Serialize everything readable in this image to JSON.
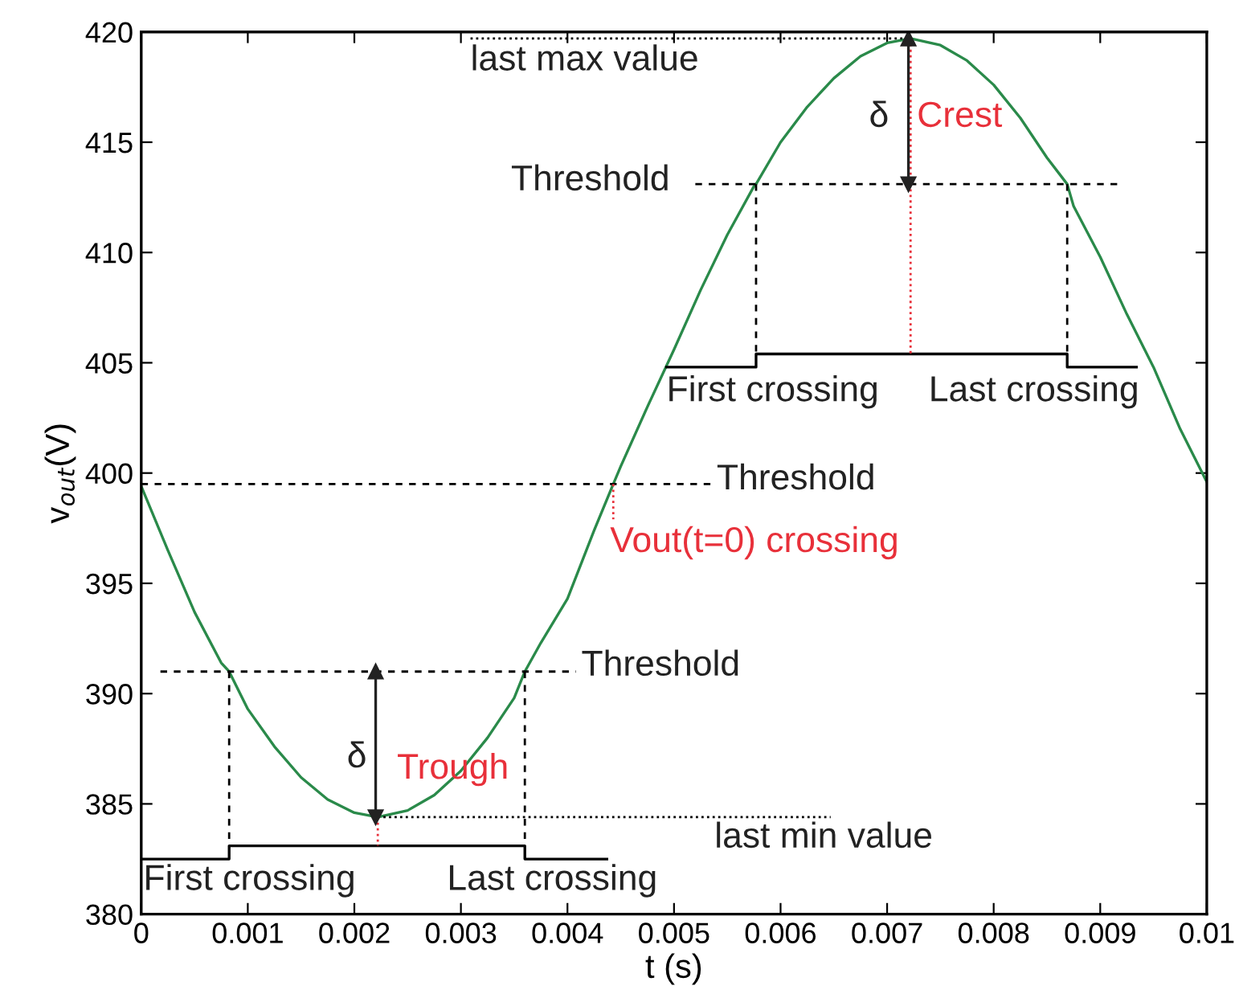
{
  "chart_data": {
    "type": "line",
    "xlabel": "t (s)",
    "ylabel": "v$_{out}$(V)",
    "xlim": [
      0,
      0.01
    ],
    "ylim": [
      380,
      420
    ],
    "xticks": [
      0,
      0.001,
      0.002,
      0.003,
      0.004,
      0.005,
      0.006,
      0.007,
      0.008,
      0.009,
      0.01
    ],
    "yticks": [
      380,
      385,
      390,
      395,
      400,
      405,
      410,
      415,
      420
    ],
    "grid": false,
    "series": [
      {
        "color": "#2a8a4a",
        "line_style": "solid",
        "x": [
          0,
          0.00025,
          0.0005,
          0.00075,
          0.000825,
          0.001,
          0.00125,
          0.0015,
          0.00175,
          0.002,
          0.00222,
          0.0025,
          0.00275,
          0.003,
          0.00325,
          0.0035,
          0.0036,
          0.00375,
          0.004,
          0.00425,
          0.00443,
          0.0045,
          0.00475,
          0.005,
          0.00525,
          0.0055,
          0.00575,
          0.00577,
          0.006,
          0.00625,
          0.0065,
          0.00675,
          0.007,
          0.00722,
          0.0075,
          0.00775,
          0.008,
          0.00825,
          0.0085,
          0.00869,
          0.00875,
          0.009,
          0.00925,
          0.0095,
          0.00975,
          0.01
        ],
        "values": [
          399.4,
          396.5,
          393.7,
          391.4,
          391.0,
          389.3,
          387.6,
          386.2,
          385.2,
          384.6,
          384.4,
          384.7,
          385.4,
          386.5,
          388.0,
          389.8,
          391.0,
          392.3,
          394.3,
          397.4,
          399.5,
          400.3,
          403.0,
          405.6,
          408.3,
          410.8,
          413.0,
          413.1,
          415.0,
          416.6,
          417.9,
          418.9,
          419.5,
          419.7,
          419.4,
          418.7,
          417.6,
          416.1,
          414.3,
          413.1,
          412.1,
          409.8,
          407.2,
          404.8,
          402.0,
          399.6
        ]
      },
      {
        "color": "#000000",
        "line_style": "dashed",
        "x": [
          0.0052,
          0.00918
        ],
        "values": [
          413.1,
          413.1
        ]
      },
      {
        "color": "#000000",
        "line_style": "dashed",
        "x": [
          0,
          0.00535
        ],
        "values": [
          399.5,
          399.5
        ]
      },
      {
        "color": "#000000",
        "line_style": "dashed",
        "x": [
          0.00018,
          0.00408
        ],
        "values": [
          391.0,
          391.0
        ]
      },
      {
        "color": "#000000",
        "line_style": "dotted",
        "x": [
          0.00309,
          0.00722
        ],
        "values": [
          419.7,
          419.7
        ]
      },
      {
        "color": "#000000",
        "line_style": "dotted",
        "x": [
          0.00222,
          0.00647
        ],
        "values": [
          384.4,
          384.4
        ]
      },
      {
        "color": "#000000",
        "line_style": "solid",
        "x": [
          0,
          0.000825,
          0.000825,
          0.0036,
          0.0036,
          0.00437
        ],
        "values": [
          382.5,
          382.5,
          383.1,
          383.1,
          382.5,
          382.5
        ]
      },
      {
        "color": "#000000",
        "line_style": "solid",
        "x": [
          0.00493,
          0.00577,
          0.00577,
          0.00869,
          0.00869,
          0.00934
        ],
        "values": [
          404.8,
          404.8,
          405.4,
          405.4,
          404.8,
          404.8
        ]
      },
      {
        "color": "#000000",
        "line_style": "dashed",
        "x": [
          0.000825,
          0.000825
        ],
        "values": [
          391.0,
          383.1
        ]
      },
      {
        "color": "#000000",
        "line_style": "dashed",
        "x": [
          0.0036,
          0.0036
        ],
        "values": [
          391.0,
          383.1
        ]
      },
      {
        "color": "#000000",
        "line_style": "dashed",
        "x": [
          0.00577,
          0.00577
        ],
        "values": [
          413.1,
          405.4
        ]
      },
      {
        "color": "#000000",
        "line_style": "dashed",
        "x": [
          0.00869,
          0.00869
        ],
        "values": [
          413.1,
          405.4
        ]
      },
      {
        "color": "#e8303a",
        "line_style": "dotted",
        "x": [
          0.00222,
          0.00222
        ],
        "values": [
          384.4,
          383.1
        ]
      },
      {
        "color": "#e8303a",
        "line_style": "dotted",
        "x": [
          0.00722,
          0.00722
        ],
        "values": [
          419.7,
          405.4
        ]
      },
      {
        "color": "#e8303a",
        "line_style": "dotted",
        "x": [
          0.00443,
          0.00443
        ],
        "values": [
          399.5,
          397.9
        ]
      },
      {
        "color": "#222222",
        "line_style": "solid",
        "marker": "triangle",
        "x": [
          0.0022,
          0.0022
        ],
        "values": [
          391.0,
          384.4
        ]
      },
      {
        "color": "#222222",
        "line_style": "solid",
        "marker": "triangle",
        "x": [
          0.0072,
          0.0072
        ],
        "values": [
          419.7,
          413.1
        ]
      }
    ],
    "annotations": [
      "last max value",
      "δ",
      "Crest",
      "Threshold",
      "First crossing",
      "Last crossing",
      "Threshold",
      "Vout(t=0) crossing",
      "Threshold",
      "δ",
      "Trough",
      "last min value",
      "First crossing",
      "Last crossing"
    ]
  }
}
